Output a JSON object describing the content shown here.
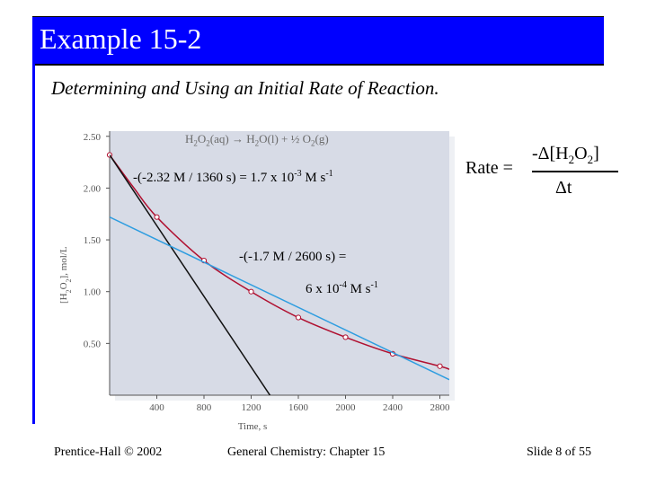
{
  "slide": {
    "title": "Example 15-2",
    "subtitle": "Determining and Using an Initial Rate of Reaction.",
    "footer_left": "Prentice-Hall © 2002",
    "footer_center": "General Chemistry: Chapter 15",
    "footer_right": "Slide 8 of 55"
  },
  "annotations": {
    "reaction": {
      "a": "H",
      "b": "2",
      "c": "O",
      "d": "2",
      "e": "(aq) → H",
      "f": "2",
      "g": "O(l) + ½ O",
      "h": "2",
      "i": "(g)"
    },
    "calc1": {
      "text": "-(-2.32 M / 1360 s) = 1.7 ",
      "times": "x",
      "exp_base": " 10",
      "exp": "-3",
      "unit": " M s",
      "unit_exp": "-1"
    },
    "calc2_line1": "-(-1.7 M / 2600 s) =",
    "calc2": {
      "text": "6 ",
      "times": "x",
      "exp_base": " 10",
      "exp": "-4",
      "unit": " M s",
      "unit_exp": "-1"
    }
  },
  "rate_equation": {
    "lhs": "Rate =",
    "numerator": "-Δ[H",
    "sub1": "2",
    "mid": "O",
    "sub2": "2",
    "close": "]",
    "denominator": "Δt"
  },
  "chart_data": {
    "type": "line",
    "xlabel": "Time, s",
    "ylabel_parts": {
      "a": "[H",
      "b": "2",
      "c": "O",
      "d": "2",
      "e": "], mol/L"
    },
    "xlim": [
      0,
      2880
    ],
    "ylim": [
      0,
      2.55
    ],
    "x_ticks": [
      400,
      800,
      1200,
      1600,
      2000,
      2400,
      2800
    ],
    "y_ticks": [
      "0.50",
      "1.00",
      "1.50",
      "2.00",
      "2.50"
    ],
    "y_tick_values": [
      0.5,
      1.0,
      1.5,
      2.0,
      2.5
    ],
    "series": [
      {
        "name": "[H2O2] concentration",
        "color": "#b01030",
        "x": [
          0,
          200,
          400,
          800,
          1200,
          1600,
          2000,
          2400,
          2800,
          2880
        ],
        "y": [
          2.32,
          2.01,
          1.72,
          1.3,
          1.0,
          0.75,
          0.56,
          0.4,
          0.28,
          0.25
        ],
        "marker_x": [
          0,
          400,
          800,
          1200,
          1600,
          2000,
          2400,
          2800
        ]
      },
      {
        "name": "initial tangent",
        "color": "#111111",
        "x": [
          0,
          1400
        ],
        "y": [
          2.32,
          -0.07
        ]
      },
      {
        "name": "tangent at 1200 s",
        "color": "#2e9de0",
        "x": [
          0,
          2880
        ],
        "y": [
          1.72,
          0.15
        ]
      }
    ],
    "background": "#d7dbe6"
  }
}
